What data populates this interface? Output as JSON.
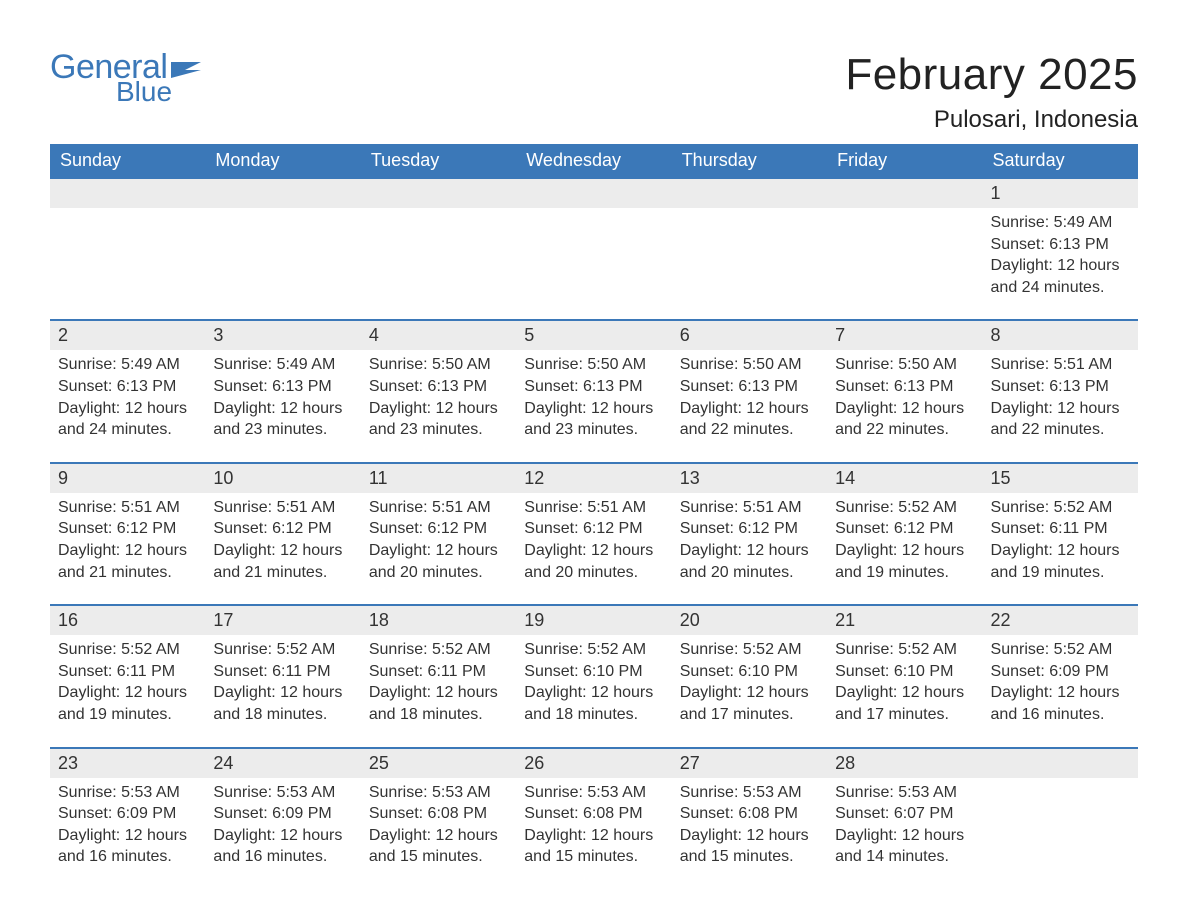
{
  "colors": {
    "accent": "#3b78b8",
    "row_bg": "#ececec",
    "page_bg": "#ffffff",
    "text": "#333333",
    "header_text": "#ffffff"
  },
  "logo": {
    "word1": "General",
    "word2": "Blue"
  },
  "title": "February 2025",
  "location": "Pulosari, Indonesia",
  "day_headers": [
    "Sunday",
    "Monday",
    "Tuesday",
    "Wednesday",
    "Thursday",
    "Friday",
    "Saturday"
  ],
  "labels": {
    "sunrise": "Sunrise:",
    "sunset": "Sunset:",
    "daylight": "Daylight:"
  },
  "weeks": [
    [
      null,
      null,
      null,
      null,
      null,
      null,
      {
        "n": "1",
        "sunrise": "5:49 AM",
        "sunset": "6:13 PM",
        "daylight": "12 hours and 24 minutes."
      }
    ],
    [
      {
        "n": "2",
        "sunrise": "5:49 AM",
        "sunset": "6:13 PM",
        "daylight": "12 hours and 24 minutes."
      },
      {
        "n": "3",
        "sunrise": "5:49 AM",
        "sunset": "6:13 PM",
        "daylight": "12 hours and 23 minutes."
      },
      {
        "n": "4",
        "sunrise": "5:50 AM",
        "sunset": "6:13 PM",
        "daylight": "12 hours and 23 minutes."
      },
      {
        "n": "5",
        "sunrise": "5:50 AM",
        "sunset": "6:13 PM",
        "daylight": "12 hours and 23 minutes."
      },
      {
        "n": "6",
        "sunrise": "5:50 AM",
        "sunset": "6:13 PM",
        "daylight": "12 hours and 22 minutes."
      },
      {
        "n": "7",
        "sunrise": "5:50 AM",
        "sunset": "6:13 PM",
        "daylight": "12 hours and 22 minutes."
      },
      {
        "n": "8",
        "sunrise": "5:51 AM",
        "sunset": "6:13 PM",
        "daylight": "12 hours and 22 minutes."
      }
    ],
    [
      {
        "n": "9",
        "sunrise": "5:51 AM",
        "sunset": "6:12 PM",
        "daylight": "12 hours and 21 minutes."
      },
      {
        "n": "10",
        "sunrise": "5:51 AM",
        "sunset": "6:12 PM",
        "daylight": "12 hours and 21 minutes."
      },
      {
        "n": "11",
        "sunrise": "5:51 AM",
        "sunset": "6:12 PM",
        "daylight": "12 hours and 20 minutes."
      },
      {
        "n": "12",
        "sunrise": "5:51 AM",
        "sunset": "6:12 PM",
        "daylight": "12 hours and 20 minutes."
      },
      {
        "n": "13",
        "sunrise": "5:51 AM",
        "sunset": "6:12 PM",
        "daylight": "12 hours and 20 minutes."
      },
      {
        "n": "14",
        "sunrise": "5:52 AM",
        "sunset": "6:12 PM",
        "daylight": "12 hours and 19 minutes."
      },
      {
        "n": "15",
        "sunrise": "5:52 AM",
        "sunset": "6:11 PM",
        "daylight": "12 hours and 19 minutes."
      }
    ],
    [
      {
        "n": "16",
        "sunrise": "5:52 AM",
        "sunset": "6:11 PM",
        "daylight": "12 hours and 19 minutes."
      },
      {
        "n": "17",
        "sunrise": "5:52 AM",
        "sunset": "6:11 PM",
        "daylight": "12 hours and 18 minutes."
      },
      {
        "n": "18",
        "sunrise": "5:52 AM",
        "sunset": "6:11 PM",
        "daylight": "12 hours and 18 minutes."
      },
      {
        "n": "19",
        "sunrise": "5:52 AM",
        "sunset": "6:10 PM",
        "daylight": "12 hours and 18 minutes."
      },
      {
        "n": "20",
        "sunrise": "5:52 AM",
        "sunset": "6:10 PM",
        "daylight": "12 hours and 17 minutes."
      },
      {
        "n": "21",
        "sunrise": "5:52 AM",
        "sunset": "6:10 PM",
        "daylight": "12 hours and 17 minutes."
      },
      {
        "n": "22",
        "sunrise": "5:52 AM",
        "sunset": "6:09 PM",
        "daylight": "12 hours and 16 minutes."
      }
    ],
    [
      {
        "n": "23",
        "sunrise": "5:53 AM",
        "sunset": "6:09 PM",
        "daylight": "12 hours and 16 minutes."
      },
      {
        "n": "24",
        "sunrise": "5:53 AM",
        "sunset": "6:09 PM",
        "daylight": "12 hours and 16 minutes."
      },
      {
        "n": "25",
        "sunrise": "5:53 AM",
        "sunset": "6:08 PM",
        "daylight": "12 hours and 15 minutes."
      },
      {
        "n": "26",
        "sunrise": "5:53 AM",
        "sunset": "6:08 PM",
        "daylight": "12 hours and 15 minutes."
      },
      {
        "n": "27",
        "sunrise": "5:53 AM",
        "sunset": "6:08 PM",
        "daylight": "12 hours and 15 minutes."
      },
      {
        "n": "28",
        "sunrise": "5:53 AM",
        "sunset": "6:07 PM",
        "daylight": "12 hours and 14 minutes."
      },
      null
    ]
  ]
}
